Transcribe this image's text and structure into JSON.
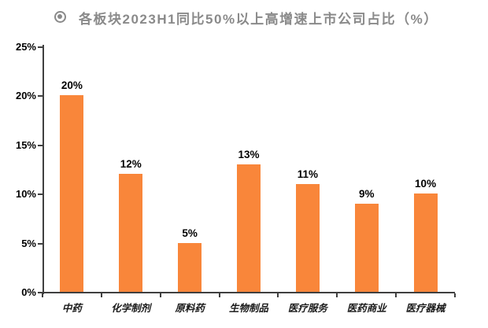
{
  "header": {
    "bullet_icon": "bullseye-icon",
    "title": "各板块2023H1同比50%以上高增速上市公司占比（%）"
  },
  "colors": {
    "background": "#FFFFFF",
    "title_text": "#8A8A8A",
    "bar": "#F9863A",
    "axis": "#3F3F3F",
    "label_text": "#000000"
  },
  "chart_data": {
    "type": "bar",
    "title": "各板块2023H1同比50%以上高增速上市公司占比（%）",
    "categories": [
      "中药",
      "化学制剂",
      "原料药",
      "生物制品",
      "医疗服务",
      "医药商业",
      "医疗器械"
    ],
    "values": [
      20,
      12,
      5,
      13,
      11,
      9,
      10
    ],
    "data_labels": [
      "20%",
      "12%",
      "5%",
      "13%",
      "11%",
      "9%",
      "10%"
    ],
    "unit": "%",
    "xlabel": "",
    "ylabel": "",
    "ylim": [
      0,
      25
    ],
    "ytick_interval": 5,
    "ytick_labels": [
      "0%",
      "5%",
      "10%",
      "15%",
      "20%",
      "25%"
    ],
    "grid": false,
    "legend": "none"
  }
}
